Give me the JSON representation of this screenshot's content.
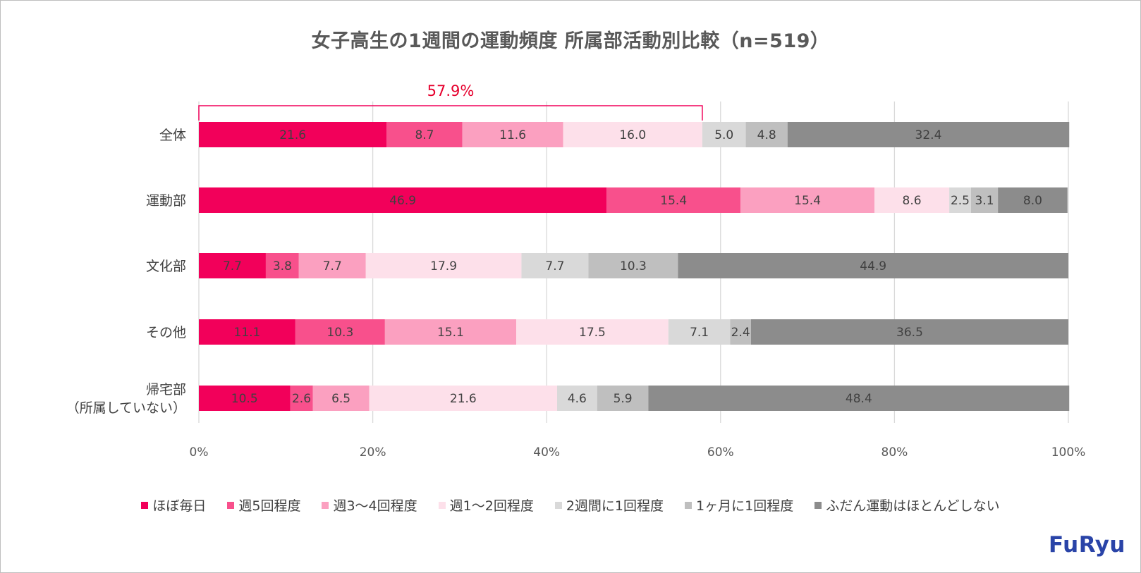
{
  "chart_data": {
    "type": "bar",
    "orientation": "horizontal",
    "stacked": "percent",
    "title": "女子高生の1週間の運動頻度 所属部活動別比較（n=519）",
    "categories": [
      "全体",
      "運動部",
      "文化部",
      "その他",
      "帰宅部\n（所属していない）"
    ],
    "series": [
      {
        "name": "ほぼ毎日",
        "color": "#f2005a",
        "values": [
          21.6,
          46.9,
          7.7,
          11.1,
          10.5
        ]
      },
      {
        "name": "週5回程度",
        "color": "#f8508c",
        "values": [
          8.7,
          15.4,
          3.8,
          10.3,
          2.6
        ]
      },
      {
        "name": "週3～4回程度",
        "color": "#fba0c0",
        "values": [
          11.6,
          15.4,
          7.7,
          15.1,
          6.5
        ]
      },
      {
        "name": "週1～2回程度",
        "color": "#fde0ea",
        "values": [
          16.0,
          8.6,
          17.9,
          17.5,
          21.6
        ]
      },
      {
        "name": "2週間に1回程度",
        "color": "#d9d9d9",
        "values": [
          5.0,
          2.5,
          7.7,
          7.1,
          4.6
        ]
      },
      {
        "name": "1ヶ月に1回程度",
        "color": "#bfbfbf",
        "values": [
          4.8,
          3.1,
          10.3,
          2.4,
          5.9
        ]
      },
      {
        "name": "ふだん運動はほとんどしない",
        "color": "#8c8c8c",
        "values": [
          32.4,
          8.0,
          44.9,
          36.5,
          48.4
        ]
      }
    ],
    "xlim": [
      0,
      100
    ],
    "xticks": [
      "0%",
      "20%",
      "40%",
      "60%",
      "80%",
      "100%"
    ],
    "grid": true,
    "legend_position": "bottom",
    "annotation": {
      "text": "57.9%",
      "category": "全体",
      "from": 0,
      "to": 57.9,
      "color": "#e6002d"
    }
  },
  "logo": "FuRyu"
}
